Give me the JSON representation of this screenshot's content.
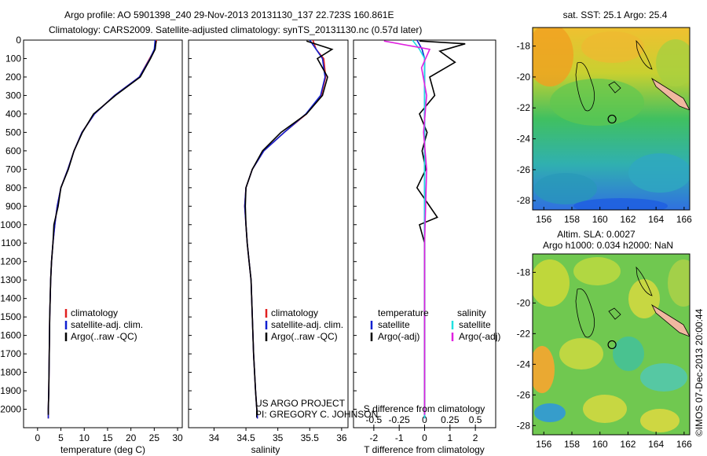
{
  "header": {
    "line1": "Argo profile: AO 5901398_240 29-Nov-2013 20131130_137 22.723S 160.861E",
    "line2": "Climatology: CARS2009. Satellite-adjusted climatology: synTS_20131130.nc (0.57d later)"
  },
  "credit": {
    "line1": "US ARGO PROJECT",
    "line2": "PI: GREGORY C. JOHNSON"
  },
  "side_label": "©IMOS 07-Dec-2013 20:00:44",
  "colors": {
    "climatology": "#e02020",
    "satellite": "#1020d0",
    "argo": "#000000",
    "sat_salinity": "#20e0e0",
    "argo_adj_salinity": "#e020e0"
  },
  "chart_data": [
    {
      "type": "line",
      "xlabel": "temperature (deg C)",
      "ylabel": "",
      "xlim": [
        -3,
        31
      ],
      "ylim": [
        2100,
        0
      ],
      "xticks": [
        0,
        5,
        10,
        15,
        20,
        25,
        30
      ],
      "yticks": [
        0,
        100,
        200,
        300,
        400,
        500,
        600,
        700,
        800,
        900,
        1000,
        1100,
        1200,
        1300,
        1400,
        1500,
        1600,
        1700,
        1800,
        1900,
        2000
      ],
      "legend": [
        "climatology",
        "satellite-adj. clim.",
        "Argo(..raw -QC)"
      ],
      "legend_position": "lower-left",
      "series": [
        {
          "name": "climatology",
          "color": "#e02020",
          "x": [
            25.5,
            25.1,
            24.0,
            21.8,
            16.5,
            12.2,
            9.5,
            7.8,
            6.5,
            5.0,
            4.2,
            3.7,
            3.3,
            3.0,
            2.8,
            2.6,
            2.5,
            2.4,
            2.3,
            2.3
          ],
          "y": [
            0,
            50,
            100,
            200,
            300,
            400,
            500,
            600,
            700,
            800,
            900,
            1000,
            1100,
            1200,
            1300,
            1500,
            1700,
            1900,
            2000,
            2050
          ]
        },
        {
          "name": "satellite-adj. clim.",
          "color": "#1020d0",
          "x": [
            25.2,
            25.0,
            24.1,
            21.8,
            16.5,
            12.2,
            9.5,
            7.8,
            6.5,
            5.0,
            4.2,
            3.7,
            3.3,
            3.0,
            2.8,
            2.6,
            2.5,
            2.4,
            2.3,
            2.3
          ],
          "y": [
            0,
            50,
            100,
            200,
            300,
            400,
            500,
            600,
            700,
            800,
            900,
            1000,
            1100,
            1200,
            1300,
            1500,
            1700,
            1900,
            2000,
            2050
          ]
        },
        {
          "name": "Argo(..raw -QC)",
          "color": "#000000",
          "x": [
            25.4,
            25.2,
            24.2,
            22.0,
            16.7,
            12.0,
            9.6,
            7.8,
            6.6,
            5.0,
            4.4,
            3.5,
            3.3,
            3.0,
            2.8,
            2.6,
            2.5,
            2.4,
            2.3,
            2.3
          ],
          "y": [
            5,
            50,
            100,
            200,
            300,
            400,
            500,
            600,
            700,
            800,
            900,
            1000,
            1100,
            1200,
            1300,
            1500,
            1700,
            1900,
            2000,
            2030
          ]
        }
      ]
    },
    {
      "type": "line",
      "xlabel": "salinity",
      "ylabel": "",
      "xlim": [
        33.6,
        36.1
      ],
      "ylim": [
        2100,
        0
      ],
      "xticks": [
        34,
        34.5,
        35,
        35.5,
        36
      ],
      "legend": [
        "climatology",
        "satellite-adj. clim.",
        "Argo(..raw -QC)"
      ],
      "legend_position": "lower-right",
      "series": [
        {
          "name": "climatology",
          "color": "#e02020",
          "x": [
            35.55,
            35.6,
            35.72,
            35.75,
            35.68,
            35.45,
            35.1,
            34.78,
            34.6,
            34.5,
            34.48,
            34.5,
            34.52,
            34.55,
            34.58,
            34.6,
            34.62,
            34.65,
            34.67,
            34.68
          ],
          "y": [
            0,
            50,
            100,
            200,
            300,
            400,
            500,
            600,
            700,
            800,
            900,
            1000,
            1100,
            1200,
            1300,
            1500,
            1700,
            1900,
            2000,
            2050
          ]
        },
        {
          "name": "satellite-adj. clim.",
          "color": "#1020d0",
          "x": [
            35.5,
            35.6,
            35.7,
            35.74,
            35.67,
            35.44,
            35.1,
            34.78,
            34.6,
            34.5,
            34.48,
            34.5,
            34.52,
            34.55,
            34.58,
            34.6,
            34.62,
            34.65,
            34.67,
            34.68
          ],
          "y": [
            0,
            50,
            100,
            200,
            300,
            400,
            500,
            600,
            700,
            800,
            900,
            1000,
            1100,
            1200,
            1300,
            1500,
            1700,
            1900,
            2000,
            2050
          ]
        },
        {
          "name": "Argo(..raw -QC)",
          "color": "#000000",
          "x": [
            35.45,
            35.85,
            35.62,
            35.78,
            35.7,
            35.45,
            35.05,
            34.76,
            34.6,
            34.5,
            34.49,
            34.5,
            34.52,
            34.55,
            34.58,
            34.6,
            34.62,
            34.65,
            34.67,
            34.68
          ],
          "y": [
            5,
            50,
            100,
            200,
            300,
            400,
            500,
            600,
            700,
            800,
            900,
            1000,
            1100,
            1200,
            1300,
            1500,
            1700,
            1900,
            2000,
            2030
          ]
        }
      ]
    },
    {
      "type": "line",
      "xlabel": "T difference from climatology",
      "xlabel2": "S difference from climatology",
      "ylabel": "",
      "xlim": [
        -2.8,
        2.8
      ],
      "xlim_S": [
        -0.7,
        0.7
      ],
      "ylim": [
        2100,
        0
      ],
      "xticks": [
        -2,
        -1,
        0,
        1,
        2
      ],
      "xticks_S": [
        -0.5,
        -0.25,
        0,
        0.25,
        0.5
      ],
      "legend_groups": [
        {
          "title": "temperature",
          "items": [
            "satellite",
            "Argo(-adj)"
          ]
        },
        {
          "title": "salinity",
          "items": [
            "satellite",
            "Argo(-adj)"
          ]
        }
      ],
      "legend_position": "middle",
      "series": [
        {
          "name": "satellite",
          "group": "temperature",
          "color": "#1020d0",
          "x": [
            -0.3,
            -0.1,
            0,
            0,
            0,
            0,
            0,
            0,
            0,
            0,
            0,
            0,
            0
          ],
          "y": [
            0,
            50,
            100,
            300,
            500,
            700,
            900,
            1100,
            1300,
            1500,
            1700,
            1900,
            2050
          ]
        },
        {
          "name": "Argo(-adj)",
          "group": "temperature",
          "color": "#000000",
          "x": [
            -0.2,
            1.6,
            0.6,
            1.2,
            0.2,
            0.4,
            -0.2,
            0.1,
            -0.1,
            0.05,
            -0.3,
            0.5,
            -0.2,
            0,
            0,
            0,
            0
          ],
          "y": [
            5,
            20,
            60,
            120,
            200,
            300,
            400,
            500,
            600,
            700,
            800,
            960,
            1000,
            1100,
            1500,
            1900,
            2030
          ]
        },
        {
          "name": "satellite",
          "group": "salinity",
          "color": "#20e0e0",
          "x": [
            -0.12,
            -0.05,
            0,
            0,
            0,
            0,
            0,
            0,
            0,
            0,
            0
          ],
          "y": [
            0,
            50,
            100,
            300,
            500,
            800,
            1000,
            1300,
            1600,
            1900,
            2050
          ]
        },
        {
          "name": "Argo(-adj)",
          "group": "salinity",
          "color": "#e020e0",
          "x": [
            -0.4,
            0.05,
            -0.03,
            0.02,
            -0.01,
            0.02,
            0.01,
            0,
            0,
            0,
            0
          ],
          "y": [
            5,
            50,
            150,
            300,
            500,
            700,
            900,
            1100,
            1500,
            1900,
            2030
          ]
        }
      ]
    },
    {
      "type": "heatmap",
      "title": "sat. SST: 25.1  Argo: 25.4",
      "xticks": [
        156,
        158,
        160,
        162,
        164,
        166
      ],
      "yticks": [
        -18,
        -20,
        -22,
        -24,
        -26,
        -28
      ],
      "xlim": [
        155.2,
        166.4
      ],
      "ylim": [
        -28.6,
        -16.8
      ],
      "marker": {
        "lon": 160.861,
        "lat": -22.723
      }
    },
    {
      "type": "heatmap",
      "title": "Altim. SLA: 0.0027",
      "subtitle": "Argo h1000: 0.034 h2000: NaN",
      "xticks": [
        156,
        158,
        160,
        162,
        164,
        166
      ],
      "yticks": [
        -18,
        -20,
        -22,
        -24,
        -26,
        -28
      ],
      "xlim": [
        155.2,
        166.4
      ],
      "ylim": [
        -28.6,
        -16.8
      ],
      "marker": {
        "lon": 160.861,
        "lat": -22.723
      }
    }
  ]
}
